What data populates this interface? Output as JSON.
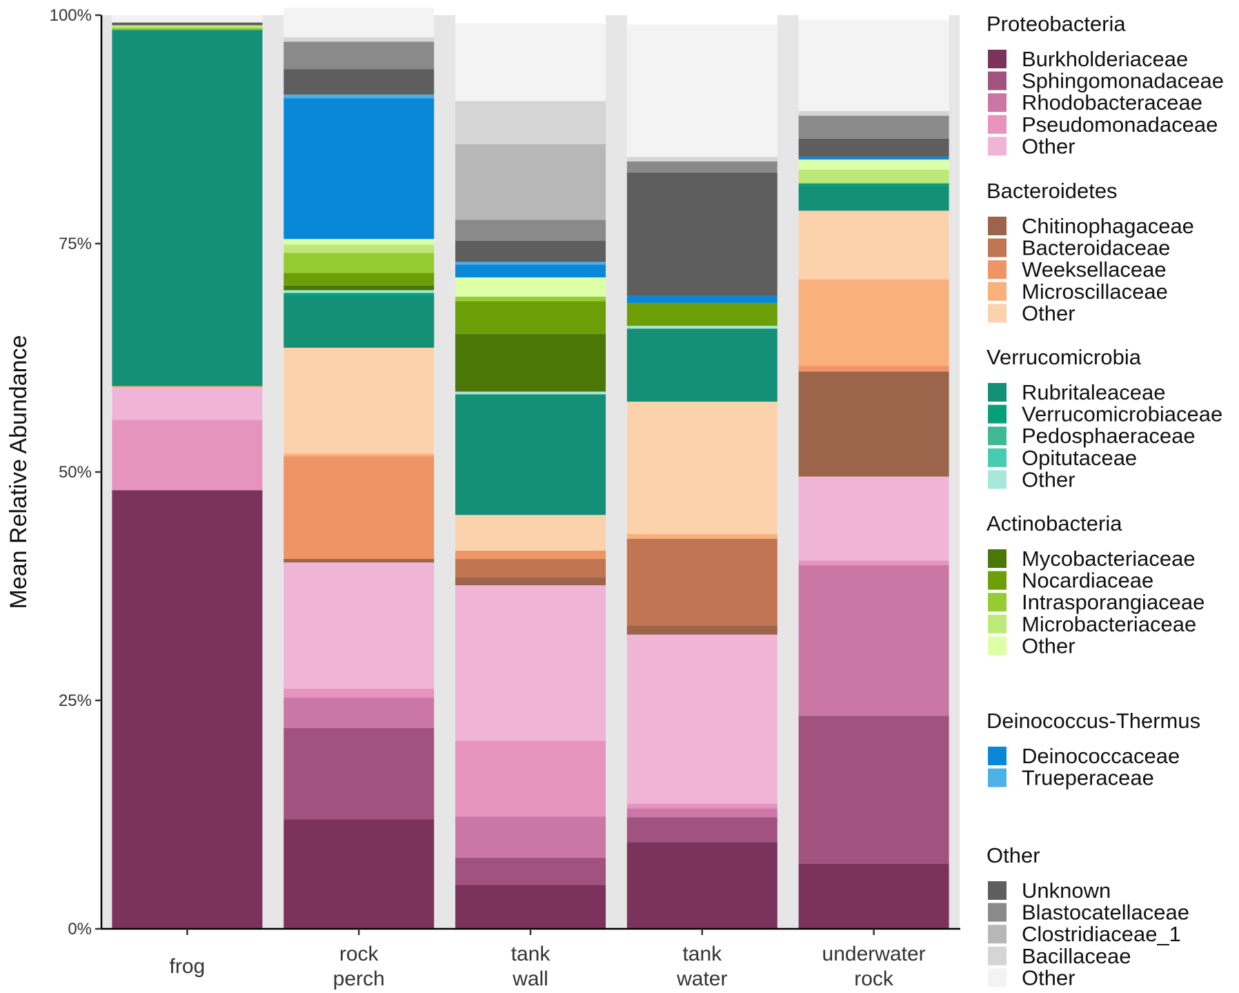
{
  "chart_data": {
    "type": "bar",
    "stacked": true,
    "ylabel": "Mean Relative Abundance",
    "xlabel": "",
    "ylim": [
      0,
      1
    ],
    "yticks": [
      {
        "value": 0,
        "label": "0%"
      },
      {
        "value": 0.25,
        "label": "25%"
      },
      {
        "value": 0.5,
        "label": "50%"
      },
      {
        "value": 0.75,
        "label": "75%"
      },
      {
        "value": 1,
        "label": "100%"
      }
    ],
    "categories": [
      {
        "key": "frog",
        "lines": [
          "frog"
        ]
      },
      {
        "key": "rock_perch",
        "lines": [
          "rock",
          "perch"
        ]
      },
      {
        "key": "tank_wall",
        "lines": [
          "tank",
          "wall"
        ]
      },
      {
        "key": "tank_water",
        "lines": [
          "tank",
          "water"
        ]
      },
      {
        "key": "underwater_rock",
        "lines": [
          "underwater",
          "rock"
        ]
      }
    ],
    "legend_groups": [
      {
        "title": "Proteobacteria",
        "entries": [
          {
            "name": "Burkholderiaceae",
            "color": "#7B335C"
          },
          {
            "name": "Sphingomonadaceae",
            "color": "#A2527E"
          },
          {
            "name": "Rhodobacteraceae",
            "color": "#CB77A6"
          },
          {
            "name": "Pseudomonadaceae",
            "color": "#E693BE"
          },
          {
            "name": "Other",
            "color": "#EFB4D6"
          }
        ]
      },
      {
        "title": "Bacteroidetes",
        "entries": [
          {
            "name": "Chitinophagaceae",
            "color": "#9C644A"
          },
          {
            "name": "Bacteroidaceae",
            "color": "#C17552"
          },
          {
            "name": "Weeksellaceae",
            "color": "#EF9464"
          },
          {
            "name": "Microscillaceae",
            "color": "#FAB07A"
          },
          {
            "name": "Other",
            "color": "#FCD2AD"
          }
        ]
      },
      {
        "title": "Verrucomicrobia",
        "entries": [
          {
            "name": "Rubritaleaceae",
            "color": "#139076"
          },
          {
            "name": "Verrucomicrobiaceae",
            "color": "#05A07A"
          },
          {
            "name": "Pedosphaeraceae",
            "color": "#3DBA93"
          },
          {
            "name": "Opitutaceae",
            "color": "#46CCB0"
          },
          {
            "name": "Other",
            "color": "#A8E8DA"
          }
        ]
      },
      {
        "title": "Actinobacteria",
        "entries": [
          {
            "name": "Mycobacteriaceae",
            "color": "#4A7707"
          },
          {
            "name": "Nocardiaceae",
            "color": "#6C9E08"
          },
          {
            "name": "Intrasporangiaceae",
            "color": "#96CB31"
          },
          {
            "name": "Microbacteriaceae",
            "color": "#BCE978"
          },
          {
            "name": "Other",
            "color": "#DDFFA5"
          }
        ]
      },
      {
        "title": "Deinococcus-Thermus",
        "entries": [
          {
            "name": "Deinococcaceae",
            "color": "#0A88D8"
          },
          {
            "name": "Trueperaceae",
            "color": "#4DB0E6"
          }
        ]
      },
      {
        "title": "Other",
        "entries": [
          {
            "name": "Unknown",
            "color": "#5E5E5E"
          },
          {
            "name": "Blastocatellaceae",
            "color": "#8A8A8A"
          },
          {
            "name": "Clostridiaceae_1",
            "color": "#B7B7B7"
          },
          {
            "name": "Bacillaceae",
            "color": "#D5D5D5"
          },
          {
            "name": "Other",
            "color": "#F3F3F3"
          }
        ]
      }
    ],
    "series": [
      {
        "name": "Burkholderiaceae",
        "values": [
          0.48,
          0.12,
          0.048,
          0.095,
          0.071
        ]
      },
      {
        "name": "Sphingomonadaceae",
        "values": [
          0,
          0.1,
          0.03,
          0.027,
          0.162
        ]
      },
      {
        "name": "Rhodobacteraceae",
        "values": [
          0,
          0.033,
          0.045,
          0.01,
          0.165
        ]
      },
      {
        "name": "Pseudomonadaceae",
        "values": [
          0.077,
          0.01,
          0.083,
          0.005,
          0.005
        ]
      },
      {
        "name": "Proteobacteria Other",
        "values": [
          0.035,
          0.138,
          0.17,
          0.185,
          0.092
        ]
      },
      {
        "name": "Chitinophagaceae",
        "values": [
          0,
          0.004,
          0.009,
          0.01,
          0.115
        ]
      },
      {
        "name": "Bacteroidaceae",
        "values": [
          0,
          0,
          0.02,
          0.095,
          0
        ]
      },
      {
        "name": "Weeksellaceae",
        "values": [
          0,
          0.112,
          0.009,
          0,
          0.006
        ]
      },
      {
        "name": "Microscillaceae",
        "values": [
          0.002,
          0.003,
          0,
          0.005,
          0.095
        ]
      },
      {
        "name": "Bacteroidetes Other",
        "values": [
          0,
          0.116,
          0.039,
          0.145,
          0.075
        ]
      },
      {
        "name": "Rubritaleaceae",
        "values": [
          0.39,
          0.057,
          0.132,
          0.08,
          0.027
        ]
      },
      {
        "name": "Verrucomicrobiaceae",
        "values": [
          0,
          0.003,
          0,
          0,
          0.003
        ]
      },
      {
        "name": "Pedosphaeraceae",
        "values": [
          0,
          0,
          0,
          0,
          0
        ]
      },
      {
        "name": "Opitutaceae",
        "values": [
          0,
          0,
          0,
          0,
          0
        ]
      },
      {
        "name": "Verrucomicrobia Other",
        "values": [
          0,
          0.003,
          0.003,
          0.003,
          0
        ]
      },
      {
        "name": "Mycobacteriaceae",
        "values": [
          0,
          0.005,
          0.063,
          0,
          0
        ]
      },
      {
        "name": "Nocardiaceae",
        "values": [
          0,
          0.014,
          0.036,
          0.025,
          0
        ]
      },
      {
        "name": "Intrasporangiaceae",
        "values": [
          0.002,
          0.022,
          0.005,
          0,
          0
        ]
      },
      {
        "name": "Microbacteriaceae",
        "values": [
          0.003,
          0.009,
          0,
          0,
          0.015
        ]
      },
      {
        "name": "Actinobacteria Other",
        "values": [
          0,
          0.006,
          0.021,
          0,
          0.011
        ]
      },
      {
        "name": "Deinococcaceae",
        "values": [
          0,
          0.154,
          0.014,
          0.008,
          0.003
        ]
      },
      {
        "name": "Trueperaceae",
        "values": [
          0,
          0.004,
          0.003,
          0,
          0
        ]
      },
      {
        "name": "Unknown",
        "values": [
          0.003,
          0.028,
          0.023,
          0.135,
          0.02
        ]
      },
      {
        "name": "Blastocatellaceae",
        "values": [
          0,
          0.03,
          0.023,
          0.012,
          0.025
        ]
      },
      {
        "name": "Clostridiaceae_1",
        "values": [
          0,
          0,
          0.083,
          0,
          0
        ]
      },
      {
        "name": "Bacillaceae",
        "values": [
          0,
          0.005,
          0.047,
          0.005,
          0.005
        ]
      },
      {
        "name": "Other Other",
        "values": [
          0.008,
          0.032,
          0.085,
          0.145,
          0.1
        ]
      }
    ]
  }
}
